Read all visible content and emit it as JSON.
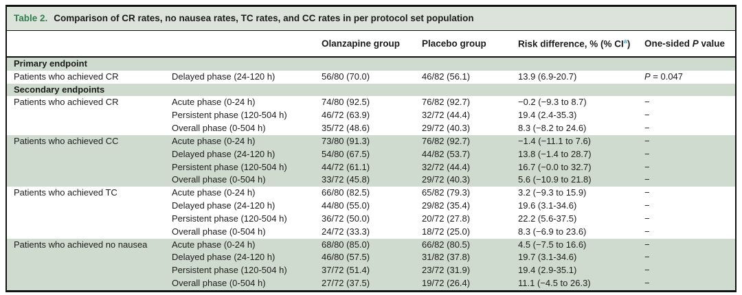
{
  "table": {
    "title_label": "Table 2.",
    "title_text": "Comparison of CR rates, no nausea rates, TC rates, and CC rates in per protocol set population",
    "header": {
      "olanzapine": "Olanzapine group",
      "placebo": "Placebo group",
      "risk_prefix": "Risk difference, % (% CI",
      "risk_sup": "a",
      "risk_suffix": ")",
      "p_pre": "One-sided ",
      "p_italic": "P",
      "p_post": " value"
    },
    "colors": {
      "row_shade_green": "#cfdbce",
      "title_bar_green": "#dce3da",
      "table_label_green": "#2e7d4e",
      "superscript_blue": "#3fa6cf"
    },
    "rows": [
      {
        "section": "Primary endpoint",
        "shaded": true
      },
      {
        "endpoint": "Patients who achieved CR",
        "phase": "Delayed phase (24-120 h)",
        "ola": "56/80 (70.0)",
        "pla": "46/82 (56.1)",
        "risk": "13.9 (6.9-20.7)",
        "p_italic": "P",
        "p_rest": " = 0.047",
        "shaded": false
      },
      {
        "section": "Secondary endpoints",
        "shaded": true
      },
      {
        "endpoint": "Patients who achieved CR",
        "phase": "Acute phase (0-24 h)",
        "ola": "74/80 (92.5)",
        "pla": "76/82 (92.7)",
        "risk": "−0.2 (−9.3 to 8.7)",
        "p": "−",
        "shaded": false
      },
      {
        "endpoint": "",
        "phase": "Persistent phase (120-504 h)",
        "ola": "46/72 (63.9)",
        "pla": "32/72 (44.4)",
        "risk": "19.4 (2.4-35.3)",
        "p": "−",
        "shaded": false
      },
      {
        "endpoint": "",
        "phase": "Overall phase (0-504 h)",
        "ola": "35/72 (48.6)",
        "pla": "29/72 (40.3)",
        "risk": "8.3 (−8.2 to 24.6)",
        "p": "−",
        "shaded": false
      },
      {
        "endpoint": "Patients who achieved CC",
        "phase": "Acute phase (0-24 h)",
        "ola": "73/80 (91.3)",
        "pla": "76/82 (92.7)",
        "risk": "−1.4 (−11.1 to 7.6)",
        "p": "−",
        "shaded": true
      },
      {
        "endpoint": "",
        "phase": "Delayed phase (24-120 h)",
        "ola": "54/80 (67.5)",
        "pla": "44/82 (53.7)",
        "risk": "13.8 (−1.4 to 28.7)",
        "p": "−",
        "shaded": true
      },
      {
        "endpoint": "",
        "phase": "Persistent phase (120-504 h)",
        "ola": "44/72 (61.1)",
        "pla": "32/72 (44.4)",
        "risk": "16.7 (−0.0 to 32.7)",
        "p": "−",
        "shaded": true
      },
      {
        "endpoint": "",
        "phase": "Overall phase (0-504 h)",
        "ola": "33/72 (45.8)",
        "pla": "29/72 (40.3)",
        "risk": "5.6 (−10.9 to 21.8)",
        "p": "−",
        "shaded": true
      },
      {
        "endpoint": "Patients who achieved TC",
        "phase": "Acute phase (0-24 h)",
        "ola": "66/80 (82.5)",
        "pla": "65/82 (79.3)",
        "risk": "3.2 (−9.3 to 15.9)",
        "p": "−",
        "shaded": false
      },
      {
        "endpoint": "",
        "phase": "Delayed phase (24-120 h)",
        "ola": "44/80 (55.0)",
        "pla": "29/82 (35.4)",
        "risk": "19.6 (3.1-34.6)",
        "p": "−",
        "shaded": false
      },
      {
        "endpoint": "",
        "phase": "Persistent phase (120-504 h)",
        "ola": "36/72 (50.0)",
        "pla": "20/72 (27.8)",
        "risk": "22.2 (5.6-37.5)",
        "p": "−",
        "shaded": false
      },
      {
        "endpoint": "",
        "phase": "Overall phase (0-504 h)",
        "ola": "24/72 (33.3)",
        "pla": "18/72 (25.0)",
        "risk": "8.3 (−6.9 to 23.6)",
        "p": "−",
        "shaded": false
      },
      {
        "endpoint": "Patients who achieved no nausea",
        "phase": "Acute phase (0-24 h)",
        "ola": "68/80 (85.0)",
        "pla": "66/82 (80.5)",
        "risk": "4.5 (−7.5 to 16.6)",
        "p": "−",
        "shaded": true
      },
      {
        "endpoint": "",
        "phase": "Delayed phase (24-120 h)",
        "ola": "46/80 (57.5)",
        "pla": "31/82 (37.8)",
        "risk": "19.7 (3.1-34.6)",
        "p": "−",
        "shaded": true
      },
      {
        "endpoint": "",
        "phase": "Persistent phase (120-504 h)",
        "ola": "37/72 (51.4)",
        "pla": "23/72 (31.9)",
        "risk": "19.4 (2.9-35.1)",
        "p": "−",
        "shaded": true
      },
      {
        "endpoint": "",
        "phase": "Overall phase (0-504 h)",
        "ola": "27/72 (37.5)",
        "pla": "19/72 (26.4)",
        "risk": "11.1 (−4.5 to 26.3)",
        "p": "−",
        "shaded": true
      }
    ]
  }
}
